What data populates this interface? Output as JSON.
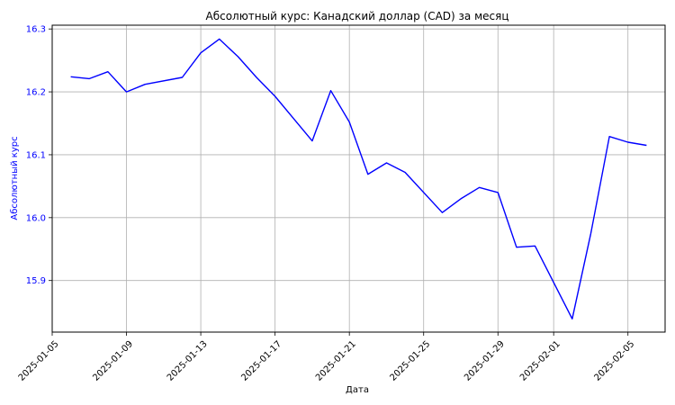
{
  "chart_data": {
    "type": "line",
    "title": "Абсолютный курс: Канадский доллар (CAD) за месяц",
    "xlabel": "Дата",
    "ylabel": "Абсолютный курс",
    "x": [
      "2025-01-06",
      "2025-01-07",
      "2025-01-08",
      "2025-01-09",
      "2025-01-10",
      "2025-01-12",
      "2025-01-13",
      "2025-01-14",
      "2025-01-15",
      "2025-01-16",
      "2025-01-17",
      "2025-01-19",
      "2025-01-20",
      "2025-01-21",
      "2025-01-22",
      "2025-01-23",
      "2025-01-24",
      "2025-01-26",
      "2025-01-27",
      "2025-01-28",
      "2025-01-29",
      "2025-01-30",
      "2025-01-31",
      "2025-02-02",
      "2025-02-03",
      "2025-02-04",
      "2025-02-05",
      "2025-02-06"
    ],
    "series": [
      {
        "name": "",
        "values": [
          16.224,
          16.221,
          16.232,
          16.2,
          16.212,
          16.223,
          16.262,
          16.284,
          16.256,
          16.223,
          16.193,
          16.122,
          16.202,
          16.152,
          16.069,
          16.087,
          16.072,
          16.008,
          16.03,
          16.048,
          16.04,
          15.953,
          15.955,
          15.839,
          15.975,
          16.129,
          16.12,
          16.115
        ]
      }
    ],
    "x_ticks": [
      "2025-01-05",
      "2025-01-09",
      "2025-01-13",
      "2025-01-17",
      "2025-01-21",
      "2025-01-25",
      "2025-01-29",
      "2025-02-01",
      "2025-02-05"
    ],
    "y_ticks": [
      "15.9",
      "16.0",
      "16.1",
      "16.2",
      "16.3"
    ],
    "xlim": [
      "2025-01-05",
      "2025-02-07"
    ],
    "ylim": [
      15.818,
      16.306
    ],
    "grid": true,
    "legend": "none",
    "colors": {
      "line": "#0000ff",
      "ylabel": "#0000ff",
      "yticks": "#0000ff",
      "grid": "#b0b0b0",
      "text": "#000000"
    }
  }
}
